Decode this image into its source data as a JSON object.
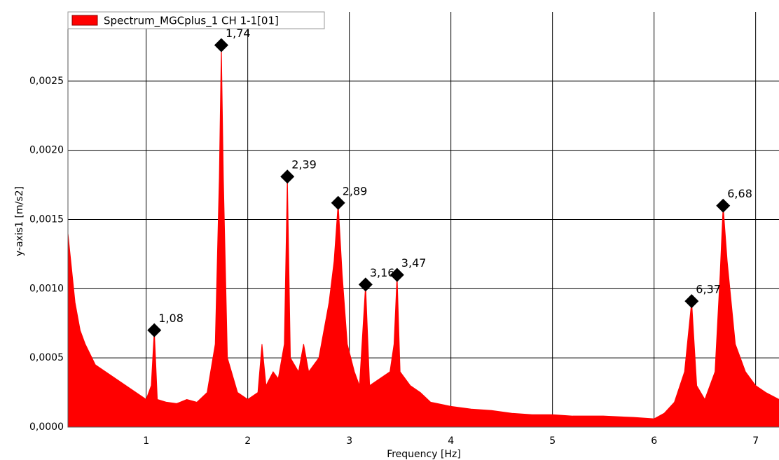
{
  "chart_data": {
    "type": "area",
    "xlabel": "Frequency [Hz]",
    "ylabel": "y-axis1 [m/s2]",
    "legend": "top-left",
    "grid": true,
    "xlim": [
      0.23,
      7.23
    ],
    "ylim": [
      0,
      0.003
    ],
    "xticks": [
      1,
      2,
      3,
      4,
      5,
      6,
      7
    ],
    "yticks": [
      {
        "value": 0,
        "label": "0,0000"
      },
      {
        "value": 0.0005,
        "label": "0,0005"
      },
      {
        "value": 0.001,
        "label": "0,0010"
      },
      {
        "value": 0.0015,
        "label": "0,0015"
      },
      {
        "value": 0.002,
        "label": "0,0020"
      },
      {
        "value": 0.0025,
        "label": "0,0025"
      }
    ],
    "series": [
      {
        "name": "Spectrum_MGCplus_1 CH 1-1[01]",
        "color": "#ff0000",
        "x": [
          0.23,
          0.3,
          0.35,
          0.4,
          0.5,
          0.6,
          0.7,
          0.8,
          0.9,
          1.0,
          1.05,
          1.08,
          1.11,
          1.2,
          1.3,
          1.4,
          1.5,
          1.6,
          1.68,
          1.72,
          1.74,
          1.76,
          1.8,
          1.9,
          2.0,
          2.1,
          2.14,
          2.18,
          2.25,
          2.3,
          2.36,
          2.39,
          2.42,
          2.5,
          2.55,
          2.6,
          2.7,
          2.8,
          2.85,
          2.89,
          2.93,
          2.98,
          3.05,
          3.1,
          3.16,
          3.2,
          3.3,
          3.4,
          3.44,
          3.47,
          3.5,
          3.6,
          3.7,
          3.8,
          4.0,
          4.2,
          4.4,
          4.6,
          4.8,
          5.0,
          5.2,
          5.5,
          5.8,
          6.0,
          6.1,
          6.2,
          6.3,
          6.37,
          6.42,
          6.5,
          6.6,
          6.65,
          6.68,
          6.72,
          6.8,
          6.9,
          7.0,
          7.1,
          7.23
        ],
        "values": [
          0.0014,
          0.0009,
          0.0007,
          0.0006,
          0.00045,
          0.0004,
          0.00035,
          0.0003,
          0.00025,
          0.0002,
          0.0003,
          0.0007,
          0.0002,
          0.00018,
          0.00017,
          0.0002,
          0.00018,
          0.00025,
          0.0006,
          0.0018,
          0.00276,
          0.0018,
          0.0005,
          0.00025,
          0.0002,
          0.00025,
          0.0006,
          0.0003,
          0.0004,
          0.00035,
          0.0006,
          0.00181,
          0.0005,
          0.0004,
          0.0006,
          0.0004,
          0.0005,
          0.0009,
          0.0012,
          0.00162,
          0.0011,
          0.0006,
          0.0004,
          0.0003,
          0.00103,
          0.0003,
          0.00035,
          0.0004,
          0.0006,
          0.0011,
          0.0004,
          0.0003,
          0.00025,
          0.00018,
          0.00015,
          0.00013,
          0.00012,
          0.0001,
          9e-05,
          9e-05,
          8e-05,
          8e-05,
          7e-05,
          6e-05,
          0.0001,
          0.00018,
          0.0004,
          0.00091,
          0.0003,
          0.0002,
          0.0004,
          0.0011,
          0.0016,
          0.0012,
          0.0006,
          0.0004,
          0.0003,
          0.00025,
          0.0002
        ]
      }
    ],
    "peaks": {
      "x": [
        1.08,
        1.74,
        2.39,
        2.89,
        3.16,
        3.47,
        6.37,
        6.68
      ],
      "y": [
        0.0007,
        0.00276,
        0.00181,
        0.00162,
        0.00103,
        0.0011,
        0.00091,
        0.0016
      ],
      "labels": [
        "1,08",
        "1,74",
        "2,39",
        "2,89",
        "3,16",
        "3,47",
        "6,37",
        "6,68"
      ]
    }
  }
}
